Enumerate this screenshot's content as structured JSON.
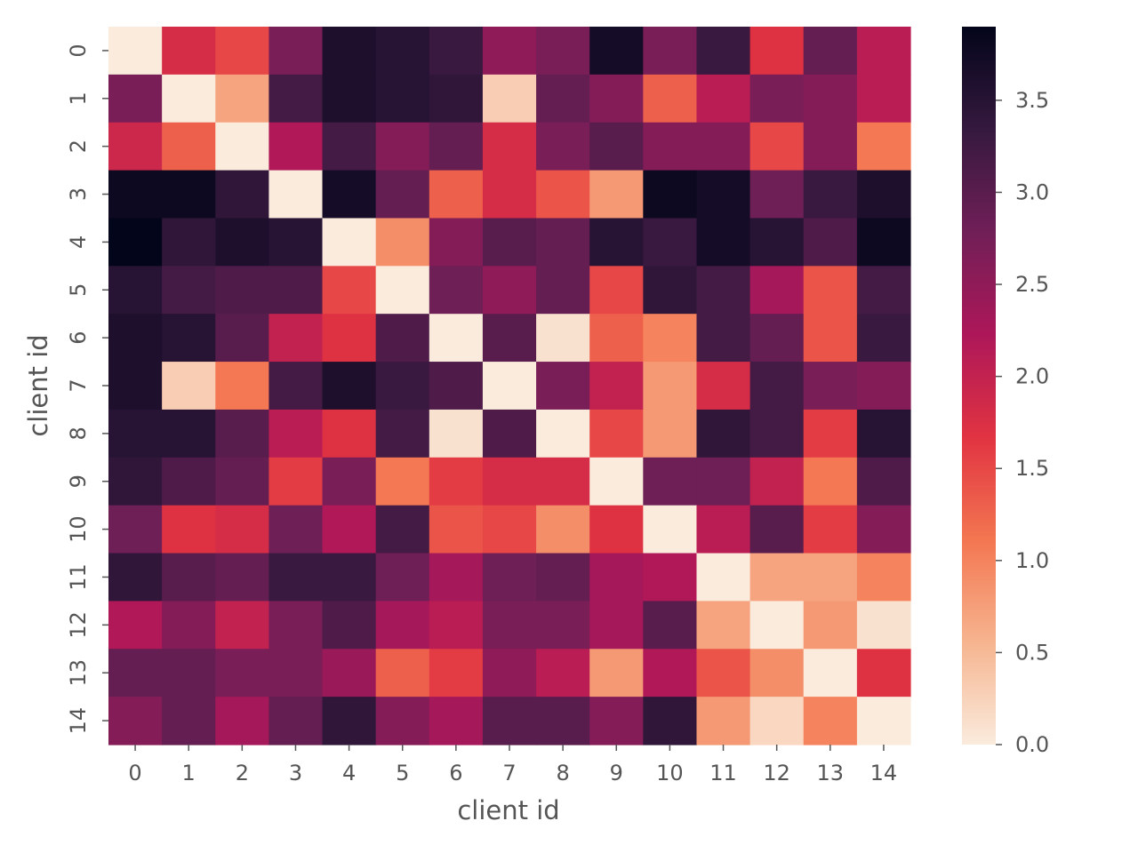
{
  "chart_data": {
    "type": "heatmap",
    "xlabel": "client id",
    "ylabel": "client id",
    "x_categories": [
      "0",
      "1",
      "2",
      "3",
      "4",
      "5",
      "6",
      "7",
      "8",
      "9",
      "10",
      "11",
      "12",
      "13",
      "14"
    ],
    "y_categories": [
      "0",
      "1",
      "2",
      "3",
      "4",
      "5",
      "6",
      "7",
      "8",
      "9",
      "10",
      "11",
      "12",
      "13",
      "14"
    ],
    "colorbar": {
      "min": 0.0,
      "max": 3.9,
      "ticks": [
        "0.0",
        "0.5",
        "1.0",
        "1.5",
        "2.0",
        "2.5",
        "3.0",
        "3.5"
      ],
      "colormap": "rocket_r",
      "stops": [
        "#faebdd",
        "#f6b48f",
        "#f37651",
        "#e13342",
        "#ad1759",
        "#701f57",
        "#35193e",
        "#03051a"
      ]
    },
    "values": [
      [
        0.0,
        1.8,
        1.5,
        2.7,
        3.6,
        3.5,
        3.3,
        2.5,
        2.7,
        3.7,
        2.7,
        3.3,
        1.7,
        2.9,
        2.1
      ],
      [
        2.7,
        0.0,
        0.7,
        3.2,
        3.6,
        3.5,
        3.4,
        0.3,
        2.9,
        2.6,
        1.3,
        2.1,
        2.7,
        2.6,
        2.1
      ],
      [
        1.9,
        1.3,
        0.0,
        2.2,
        3.2,
        2.6,
        2.9,
        1.8,
        2.7,
        3.0,
        2.6,
        2.6,
        1.5,
        2.6,
        1.1
      ],
      [
        3.8,
        3.8,
        3.4,
        0.0,
        3.7,
        2.9,
        1.3,
        1.8,
        1.4,
        0.8,
        3.8,
        3.7,
        2.8,
        3.3,
        3.6
      ],
      [
        3.9,
        3.4,
        3.6,
        3.5,
        0.0,
        0.9,
        2.6,
        3.0,
        2.9,
        3.5,
        3.3,
        3.7,
        3.5,
        3.1,
        3.8
      ],
      [
        3.5,
        3.2,
        3.1,
        3.1,
        1.5,
        0.0,
        2.8,
        2.5,
        2.9,
        1.5,
        3.4,
        3.2,
        2.3,
        1.4,
        3.2
      ],
      [
        3.6,
        3.5,
        3.0,
        2.0,
        1.7,
        3.1,
        0.0,
        3.0,
        0.1,
        1.3,
        1.0,
        3.2,
        2.9,
        1.4,
        3.3
      ],
      [
        3.6,
        0.3,
        1.1,
        3.2,
        3.6,
        3.3,
        3.1,
        0.0,
        2.7,
        2.0,
        0.8,
        1.8,
        3.2,
        2.7,
        2.6
      ],
      [
        3.5,
        3.5,
        3.0,
        2.1,
        1.7,
        3.2,
        0.1,
        3.1,
        0.0,
        1.5,
        0.8,
        3.4,
        3.2,
        1.6,
        3.5
      ],
      [
        3.4,
        3.1,
        2.9,
        1.6,
        2.7,
        1.1,
        1.6,
        1.8,
        1.8,
        0.0,
        2.8,
        2.8,
        2.0,
        1.1,
        3.1
      ],
      [
        2.8,
        1.7,
        1.8,
        2.8,
        2.2,
        3.2,
        1.4,
        1.5,
        0.9,
        1.7,
        0.0,
        2.1,
        3.0,
        1.6,
        2.6
      ],
      [
        3.4,
        3.0,
        2.9,
        3.3,
        3.3,
        2.8,
        2.3,
        2.8,
        2.9,
        2.3,
        2.2,
        0.0,
        0.7,
        0.7,
        1.0
      ],
      [
        2.2,
        2.6,
        2.0,
        2.7,
        3.1,
        2.3,
        2.1,
        2.7,
        2.7,
        2.3,
        3.0,
        0.7,
        0.0,
        0.8,
        0.1
      ],
      [
        2.9,
        2.9,
        2.7,
        2.7,
        2.4,
        1.3,
        1.6,
        2.5,
        2.1,
        0.8,
        2.2,
        1.4,
        0.9,
        0.0,
        1.7
      ],
      [
        2.6,
        2.9,
        2.3,
        2.9,
        3.4,
        2.6,
        2.3,
        3.0,
        3.0,
        2.6,
        3.4,
        0.8,
        0.2,
        1.0,
        0.0
      ]
    ]
  }
}
